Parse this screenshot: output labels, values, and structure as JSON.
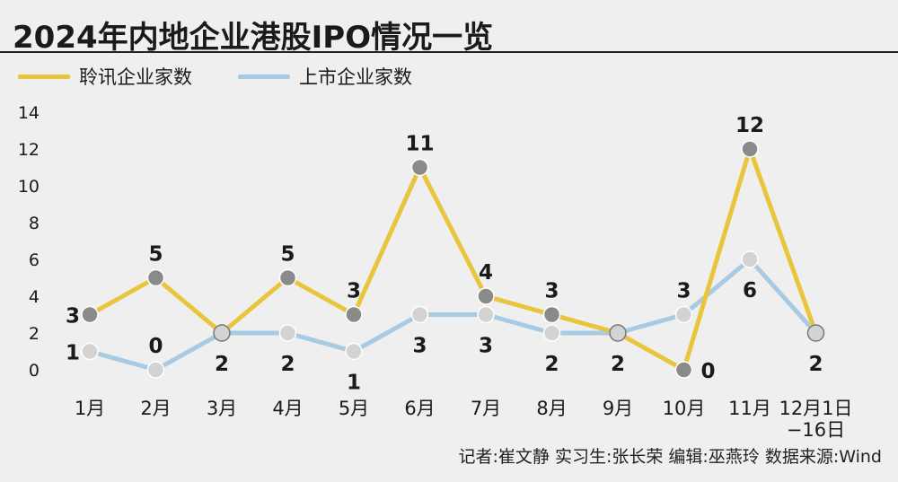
{
  "title": "2024年内地企业港股IPO情况一览",
  "credit": "记者:崔文静  实习生:张长荣  编辑:巫燕玲  数据来源:Wind",
  "colors": {
    "applications": "#e8c53c",
    "listings": "#a8cbe3",
    "dark_marker": "#8a8a8a",
    "light_marker": "#d3d3d3"
  },
  "chart_data": {
    "type": "line",
    "categories": [
      "1月",
      "2月",
      "3月",
      "4月",
      "5月",
      "6月",
      "7月",
      "8月",
      "9月",
      "10月",
      "11月",
      "12月1日\n−16日"
    ],
    "series": [
      {
        "name": "聆讯企业家数",
        "values": [
          3,
          5,
          2,
          5,
          3,
          11,
          4,
          3,
          2,
          0,
          12,
          2
        ]
      },
      {
        "name": "上市企业家数",
        "values": [
          1,
          0,
          2,
          2,
          1,
          3,
          3,
          2,
          2,
          3,
          6,
          2
        ]
      }
    ],
    "yticks": [
      0,
      2,
      4,
      6,
      8,
      10,
      12,
      14
    ],
    "ylim": [
      0,
      14
    ],
    "grid": false,
    "legend": "top-left"
  }
}
